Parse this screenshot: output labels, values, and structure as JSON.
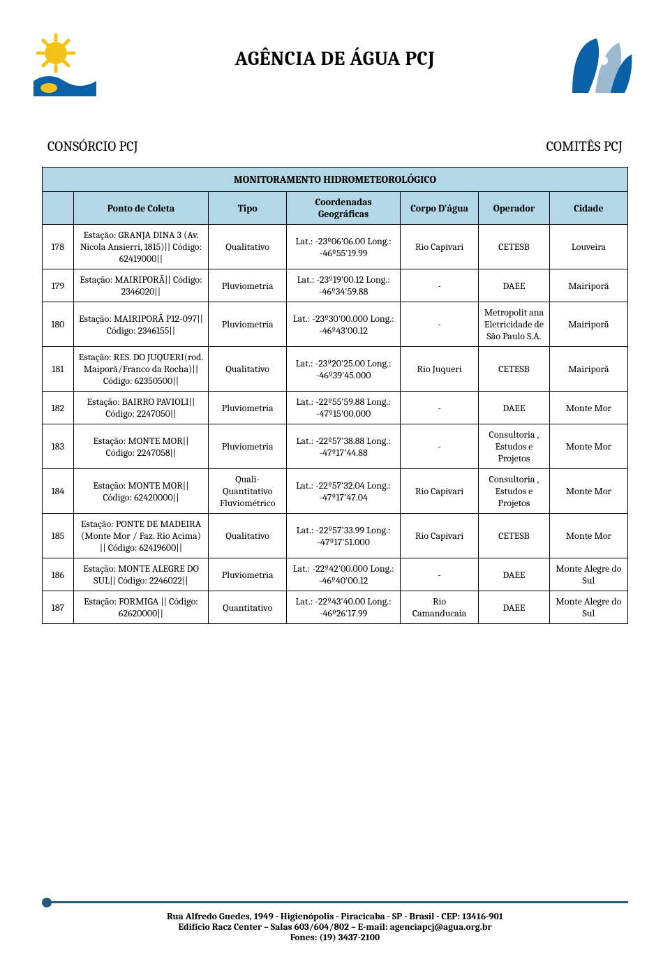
{
  "header": {
    "agency_title": "AGÊNCIA DE ÁGUA PCJ",
    "subtitle_left": "CONSÓRCIO PCJ",
    "subtitle_right": "COMITÊS PCJ",
    "logo_left": {
      "bg": "#ffffff",
      "accent1": "#f5c21a",
      "accent2": "#0a61a6"
    },
    "logo_right": {
      "bg": "#ffffff",
      "accent1": "#0a61a6",
      "accent2": "#7ea6c6"
    }
  },
  "table": {
    "title": "MONITORAMENTO HIDROMETEOROLÓGICO",
    "columns": [
      "",
      "Ponto de Coleta",
      "Tipo",
      "Coordenadas Geográficas",
      "Corpo D'água",
      "Operador",
      "Cidade"
    ],
    "header_bg": "#b3d7e6",
    "border_color": "#000000",
    "rows": [
      {
        "num": "178",
        "ponto": "Estação: GRANJA DINA 3 (Av. Nicola Ansierri, 1815)|| Código: 62419000||",
        "tipo": "Qualitativo",
        "coord": "Lat.: -23º06'06.00 Long.: -46º55'19.99",
        "corpo": "Rio Capivari",
        "oper": "CETESB",
        "cidade": "Louveira"
      },
      {
        "num": "179",
        "ponto": "Estação: MAIRIPORÃ|| Código: 2346020||",
        "tipo": "Pluviometria",
        "coord": "Lat.: -23º19'00.12 Long.: -46º34'59.88",
        "corpo": "-",
        "oper": "DAEE",
        "cidade": "Mairiporã"
      },
      {
        "num": "180",
        "ponto": "Estação: MAIRIPORÃ P12-097|| Código: 2346155||",
        "tipo": "Pluviometria",
        "coord": "Lat.: -23º30'00.000 Long.: -46º43'00.12",
        "corpo": "-",
        "oper": "Metropolit ana Eletricidade de São Paulo S.A.",
        "cidade": "Mairiporã"
      },
      {
        "num": "181",
        "ponto": "Estação: RES. DO JUQUERI(rod. Maiporã/Franco da Rocha)|| Código: 62350500||",
        "tipo": "Qualitativo",
        "coord": "Lat.: -23º20'25.00 Long.: -46º39'45.000",
        "corpo": "Rio Juqueri",
        "oper": "CETESB",
        "cidade": "Mairiporã"
      },
      {
        "num": "182",
        "ponto": "Estação: BAIRRO PAVIOLI|| Código: 2247050||",
        "tipo": "Pluviometria",
        "coord": "Lat.: -22º55'59.88 Long.: -47º15'00.000",
        "corpo": "-",
        "oper": "DAEE",
        "cidade": "Monte Mor"
      },
      {
        "num": "183",
        "ponto": "Estação: MONTE MOR|| Código: 2247058||",
        "tipo": "Pluviometria",
        "coord": "Lat.: -22º57'38.88 Long.: -47º17'44.88",
        "corpo": "-",
        "oper": "Consultoria , Estudos e Projetos",
        "cidade": "Monte Mor"
      },
      {
        "num": "184",
        "ponto": "Estação: MONTE MOR|| Código: 62420000||",
        "tipo": "Quali-Quantitativo Fluviométrico",
        "coord": "Lat.: -22º57'32.04 Long.: -47º17'47.04",
        "corpo": "Rio Capivari",
        "oper": "Consultoria , Estudos e Projetos",
        "cidade": "Monte Mor"
      },
      {
        "num": "185",
        "ponto": "Estação: PONTE DE MADEIRA (Monte Mor / Faz. Rio Acima) || Código: 62419600||",
        "tipo": "Qualitativo",
        "coord": "Lat.: -22º57'33.99 Long.: -47º17'51.000",
        "corpo": "Rio Capivari",
        "oper": "CETESB",
        "cidade": "Monte Mor"
      },
      {
        "num": "186",
        "ponto": "Estação: MONTE ALEGRE DO SUL|| Código: 2246022||",
        "tipo": "Pluviometria",
        "coord": "Lat.: -22º42'00.000 Long.: -46º40'00.12",
        "corpo": "-",
        "oper": "DAEE",
        "cidade": "Monte Alegre do Sul"
      },
      {
        "num": "187",
        "ponto": "Estação: FORMIGA || Código: 62620000||",
        "tipo": "Quantitativo",
        "coord": "Lat.: -22º43'40.00 Long.: -46º26'17.99",
        "corpo": "Rio Camanducaia",
        "oper": "DAEE",
        "cidade": "Monte Alegre do Sul"
      }
    ]
  },
  "footer": {
    "line1": "Rua Alfredo Guedes, 1949 - Higienópolis - Piracicaba -  SP - Brasil - CEP: 13416-901",
    "line2": "Edifício Racz Center – Salas 603/604/802 – E-mail: agenciapcj@agua.org.br",
    "line3": "Fones: (19) 3437-2100",
    "rule_color": "#2a5a7a"
  }
}
